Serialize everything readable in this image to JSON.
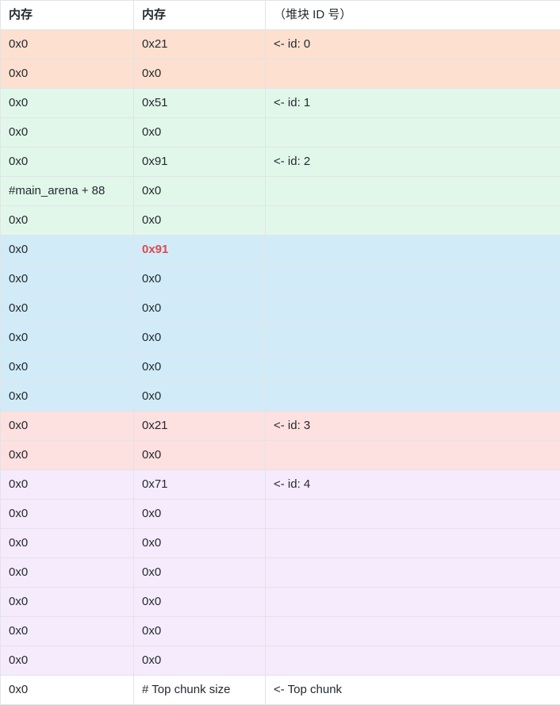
{
  "header": {
    "col1": "内存",
    "col2": "内存",
    "col3": "（堆块 ID 号）"
  },
  "colors": {
    "orange": "#fde0cf",
    "green": "#e1f7ea",
    "blue": "#d1ecf8",
    "pink": "#fde0e0",
    "purple": "#f5ebfc",
    "white": "#ffffff",
    "highlight_text": "#e0484e"
  },
  "rows": [
    {
      "c1": "0x0",
      "c2": "0x21",
      "c3": "<- id: 0",
      "color": "#fde0cf"
    },
    {
      "c1": "0x0",
      "c2": "0x0",
      "c3": "",
      "color": "#fde0cf"
    },
    {
      "c1": "0x0",
      "c2": "0x51",
      "c3": "<- id: 1",
      "color": "#e1f7ea"
    },
    {
      "c1": "0x0",
      "c2": "0x0",
      "c3": "",
      "color": "#e1f7ea"
    },
    {
      "c1": "0x0",
      "c2": "0x91",
      "c3": "<- id: 2",
      "color": "#e1f7ea"
    },
    {
      "c1": "#main_arena + 88",
      "c2": "0x0",
      "c3": "",
      "color": "#e1f7ea"
    },
    {
      "c1": "0x0",
      "c2": "0x0",
      "c3": "",
      "color": "#e1f7ea"
    },
    {
      "c1": "0x0",
      "c2": "0x91",
      "c3": "",
      "color": "#d1ecf8",
      "highlight": true
    },
    {
      "c1": "0x0",
      "c2": "0x0",
      "c3": "",
      "color": "#d1ecf8"
    },
    {
      "c1": "0x0",
      "c2": "0x0",
      "c3": "",
      "color": "#d1ecf8"
    },
    {
      "c1": "0x0",
      "c2": "0x0",
      "c3": "",
      "color": "#d1ecf8"
    },
    {
      "c1": "0x0",
      "c2": "0x0",
      "c3": "",
      "color": "#d1ecf8"
    },
    {
      "c1": "0x0",
      "c2": "0x0",
      "c3": "",
      "color": "#d1ecf8"
    },
    {
      "c1": "0x0",
      "c2": "0x21",
      "c3": "<- id: 3",
      "color": "#fde0e0"
    },
    {
      "c1": "0x0",
      "c2": "0x0",
      "c3": "",
      "color": "#fde0e0"
    },
    {
      "c1": "0x0",
      "c2": "0x71",
      "c3": "<- id: 4",
      "color": "#f5ebfc"
    },
    {
      "c1": "0x0",
      "c2": "0x0",
      "c3": "",
      "color": "#f5ebfc"
    },
    {
      "c1": "0x0",
      "c2": "0x0",
      "c3": "",
      "color": "#f5ebfc"
    },
    {
      "c1": "0x0",
      "c2": "0x0",
      "c3": "",
      "color": "#f5ebfc"
    },
    {
      "c1": "0x0",
      "c2": "0x0",
      "c3": "",
      "color": "#f5ebfc"
    },
    {
      "c1": "0x0",
      "c2": "0x0",
      "c3": "",
      "color": "#f5ebfc"
    },
    {
      "c1": "0x0",
      "c2": "0x0",
      "c3": "",
      "color": "#f5ebfc"
    },
    {
      "c1": "0x0",
      "c2": "# Top chunk size",
      "c3": "<- Top chunk",
      "color": "#ffffff"
    }
  ]
}
